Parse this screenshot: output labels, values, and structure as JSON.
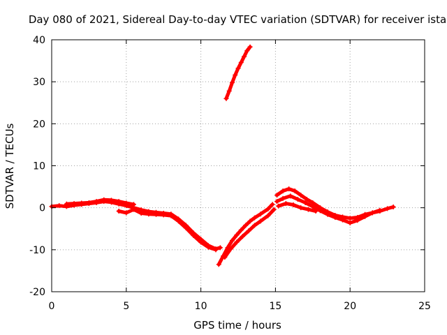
{
  "chart_data": {
    "type": "scatter",
    "title": "Day 080 of 2021, Sidereal Day-to-day VTEC variation (SDTVAR) for receiver ista",
    "xlabel": "GPS time / hours",
    "ylabel": "SDTVAR / TECUs",
    "xlim": [
      0,
      25
    ],
    "ylim": [
      -20,
      40
    ],
    "xticks": [
      0,
      5,
      10,
      15,
      20,
      25
    ],
    "yticks": [
      -20,
      -10,
      0,
      10,
      20,
      30,
      40
    ],
    "grid": true,
    "legend": "none",
    "series": [
      {
        "name": "SDTVAR",
        "color": "#ff0000",
        "marker": "+",
        "segments": [
          {
            "x": [
              0.0,
              0.5,
              1.0,
              1.5,
              2.0,
              2.5,
              3.0,
              3.5,
              4.0,
              4.5,
              5.0,
              5.5,
              6.0,
              6.5,
              7.0,
              7.5,
              8.0,
              8.5,
              9.0,
              9.5,
              10.0,
              10.5,
              11.0,
              11.3
            ],
            "y": [
              0.3,
              0.5,
              0.3,
              0.6,
              0.8,
              1.0,
              1.2,
              1.5,
              1.3,
              0.9,
              0.5,
              0.0,
              -0.5,
              -0.9,
              -1.1,
              -1.3,
              -1.5,
              -2.7,
              -4.2,
              -6.0,
              -7.5,
              -9.0,
              -9.8,
              -9.5
            ]
          },
          {
            "x": [
              4.5,
              5.0,
              5.5,
              6.0,
              6.5,
              7.0,
              7.5,
              8.0,
              8.5,
              9.0,
              9.5,
              10.0,
              10.5,
              11.0
            ],
            "y": [
              -0.8,
              -1.2,
              -0.4,
              -1.3,
              -1.5,
              -1.6,
              -1.7,
              -1.9,
              -3.2,
              -4.8,
              -6.6,
              -8.2,
              -9.4,
              -10.0
            ]
          },
          {
            "x": [
              1.0,
              1.5,
              2.0,
              2.5,
              3.0,
              3.5,
              4.0,
              4.5,
              5.0,
              5.5
            ],
            "y": [
              0.9,
              1.0,
              1.1,
              1.2,
              1.5,
              1.9,
              1.8,
              1.5,
              1.1,
              0.8
            ]
          },
          {
            "x": [
              11.2,
              11.5,
              11.8,
              12.1,
              12.4,
              12.7,
              13.0,
              13.3,
              13.6,
              14.0,
              14.5,
              14.8
            ],
            "y": [
              -13.5,
              -11.5,
              -9.5,
              -7.8,
              -6.5,
              -5.3,
              -4.2,
              -3.2,
              -2.4,
              -1.5,
              -0.3,
              0.8
            ]
          },
          {
            "x": [
              11.6,
              12.0,
              12.4,
              12.8,
              13.2,
              13.6,
              14.0,
              14.5,
              14.9
            ],
            "y": [
              -11.8,
              -9.8,
              -8.2,
              -6.8,
              -5.5,
              -4.2,
              -3.2,
              -1.9,
              -0.4
            ]
          },
          {
            "x": [
              11.7,
              11.9,
              12.1,
              12.3,
              12.5,
              12.7,
              12.9,
              13.1,
              13.3
            ],
            "y": [
              26.0,
              27.8,
              29.8,
              31.6,
              33.2,
              34.6,
              36.0,
              37.4,
              38.3
            ]
          },
          {
            "x": [
              15.1,
              15.5,
              15.9,
              16.3,
              16.7,
              17.1,
              17.5,
              18.0,
              18.5,
              19.0,
              19.5,
              20.0,
              20.5,
              21.0,
              21.5,
              22.0,
              22.5,
              22.9
            ],
            "y": [
              3.0,
              4.0,
              4.5,
              4.0,
              3.0,
              2.0,
              1.2,
              0.0,
              -1.0,
              -1.8,
              -2.2,
              -2.5,
              -2.3,
              -1.6,
              -1.2,
              -0.8,
              -0.2,
              0.2
            ]
          },
          {
            "x": [
              15.1,
              15.5,
              16.0,
              16.5,
              17.0,
              17.5,
              18.0,
              18.5,
              19.0,
              19.5,
              20.0,
              20.5,
              21.0,
              21.5,
              22.0
            ],
            "y": [
              1.5,
              2.2,
              2.8,
              2.0,
              1.2,
              0.3,
              -0.7,
              -1.6,
              -2.3,
              -2.9,
              -3.6,
              -3.0,
              -2.1,
              -1.2,
              -0.6
            ]
          },
          {
            "x": [
              15.2,
              15.7,
              16.2,
              16.7,
              17.2,
              17.7
            ],
            "y": [
              0.4,
              1.0,
              0.7,
              0.0,
              -0.4,
              -0.8
            ]
          }
        ]
      }
    ]
  }
}
